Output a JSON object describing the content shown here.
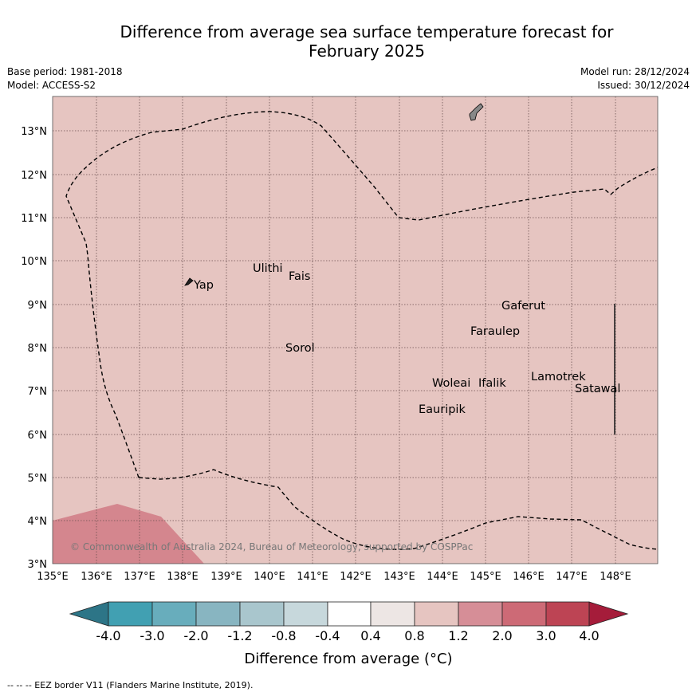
{
  "title_line1": "Difference from average sea surface temperature forecast for",
  "title_line2": "February 2025",
  "base_period": "Base period: 1981-2018",
  "model": "Model: ACCESS-S2",
  "model_run": "Model run: 28/12/2024",
  "issued": "Issued: 30/12/2024",
  "map": {
    "lon_ticks": [
      "135°E",
      "136°E",
      "137°E",
      "138°E",
      "139°E",
      "140°E",
      "141°E",
      "142°E",
      "143°E",
      "144°E",
      "145°E",
      "146°E",
      "147°E",
      "148°E"
    ],
    "lat_ticks": [
      "3°N",
      "4°N",
      "5°N",
      "6°N",
      "7°N",
      "8°N",
      "9°N",
      "10°N",
      "11°N",
      "12°N",
      "13°N"
    ],
    "background_color": "#e6c5c1",
    "warm_patch_color": "#d4868e",
    "places": [
      "Ulithi",
      "Fais",
      "Yap",
      "Gaferut",
      "Faraulep",
      "Sorol",
      "Lamotrek",
      "Satawal",
      "Woleai",
      "Ifalik",
      "Eauripik"
    ],
    "copyright": "© Commonwealth of Australia 2024, Bureau of Meteorology, supported by COSPPac"
  },
  "colorbar": {
    "labels": [
      "-4.0",
      "-3.0",
      "-2.0",
      "-1.2",
      "-0.8",
      "-0.4",
      "0.4",
      "0.8",
      "1.2",
      "2.0",
      "3.0",
      "4.0"
    ],
    "colors": [
      "#2d7587",
      "#41a0b2",
      "#68adbc",
      "#88b5c1",
      "#a9c6cd",
      "#c7d8dc",
      "#ffffff",
      "#ede6e4",
      "#e6c5c1",
      "#d68e97",
      "#cd6a76",
      "#bd4454",
      "#a51c3a"
    ],
    "label": "Difference from average (°C)"
  },
  "footer": "--  --  -- EEZ border V11 (Flanders Marine Institute, 2019)."
}
